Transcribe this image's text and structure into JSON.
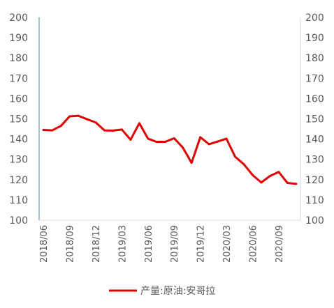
{
  "chart_data": {
    "type": "line",
    "x": [
      "2018/06",
      "2018/07",
      "2018/08",
      "2018/09",
      "2018/10",
      "2018/11",
      "2018/12",
      "2019/01",
      "2019/02",
      "2019/03",
      "2019/04",
      "2019/05",
      "2019/06",
      "2019/07",
      "2019/08",
      "2019/09",
      "2019/10",
      "2019/11",
      "2019/12",
      "2020/01",
      "2020/02",
      "2020/03",
      "2020/04",
      "2020/05",
      "2020/06",
      "2020/07",
      "2020/08",
      "2020/09",
      "2020/10",
      "2020/11"
    ],
    "x_tick_labels": [
      "2018/06",
      "2018/09",
      "2018/12",
      "2019/03",
      "2019/06",
      "2019/09",
      "2019/12",
      "2020/03",
      "2020/06",
      "2020/09"
    ],
    "series": [
      {
        "name": "产量:原油:安哥拉",
        "color": "#e00000",
        "values": [
          144.5,
          144.3,
          146.5,
          151.2,
          151.5,
          149.8,
          148.2,
          144.3,
          144.2,
          144.7,
          139.7,
          147.8,
          140.2,
          138.6,
          138.7,
          140.4,
          135.8,
          128.3,
          140.9,
          137.5,
          138.8,
          140.2,
          131.3,
          127.6,
          122.3,
          118.6,
          121.8,
          123.8,
          118.4,
          117.9
        ]
      }
    ],
    "ylim": [
      100,
      200
    ],
    "yticks": [
      100,
      110,
      120,
      130,
      140,
      150,
      160,
      170,
      180,
      190,
      200
    ],
    "y2lim": [
      100,
      200
    ],
    "y2ticks": [
      100,
      110,
      120,
      130,
      140,
      150,
      160,
      170,
      180,
      190,
      200
    ],
    "grid": false,
    "legend_position": "bottom"
  }
}
